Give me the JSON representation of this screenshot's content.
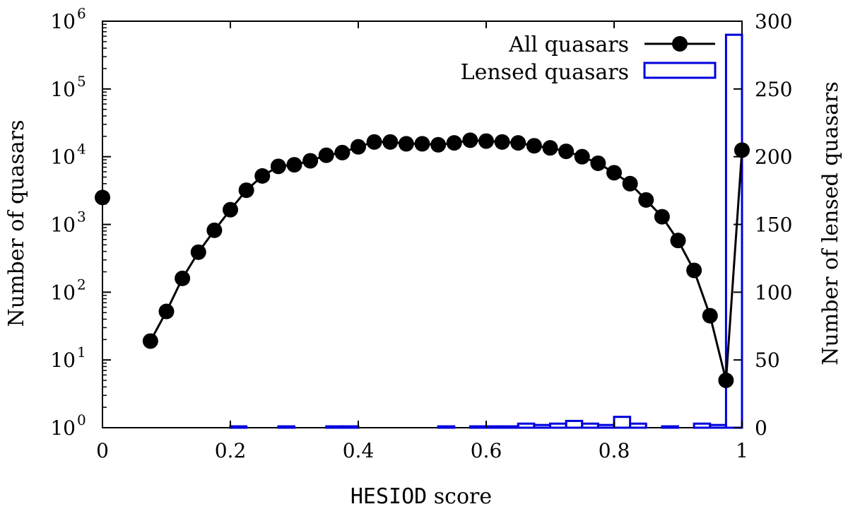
{
  "chart_data": {
    "type": "line",
    "xlabel_mono": "HESIOD",
    "xlabel_rest": " score",
    "ylabel": "Number of quasars",
    "y2label": "Number of lensed quasars",
    "xlim": [
      0,
      1
    ],
    "ylim": [
      1,
      1000000
    ],
    "y_scale": "log",
    "y2lim": [
      0,
      300
    ],
    "grid": false,
    "legend_position": "top-right",
    "x_ticks": [
      "0",
      "0.2",
      "0.4",
      "0.6",
      "0.8",
      "1"
    ],
    "x_tick_values": [
      0,
      0.2,
      0.4,
      0.6,
      0.8,
      1
    ],
    "y_tick_exponents": [
      "0",
      "1",
      "2",
      "3",
      "4",
      "5",
      "6"
    ],
    "y2_ticks": [
      "0",
      "50",
      "100",
      "150",
      "200",
      "250",
      "300"
    ],
    "y2_tick_values": [
      0,
      50,
      100,
      150,
      200,
      250,
      300
    ],
    "series": [
      {
        "name": "All quasars",
        "kind": "line-points",
        "color": "#000000",
        "x": [
          0.0,
          0.075,
          0.1,
          0.125,
          0.15,
          0.175,
          0.2,
          0.225,
          0.25,
          0.275,
          0.3,
          0.325,
          0.35,
          0.375,
          0.4,
          0.425,
          0.45,
          0.475,
          0.5,
          0.525,
          0.55,
          0.575,
          0.6,
          0.625,
          0.65,
          0.675,
          0.7,
          0.725,
          0.75,
          0.775,
          0.8,
          0.825,
          0.85,
          0.875,
          0.9,
          0.925,
          0.95,
          0.975,
          1.0
        ],
        "values": [
          2500,
          19,
          52,
          160,
          390,
          820,
          1650,
          3200,
          5200,
          7200,
          7600,
          8700,
          10500,
          11500,
          14000,
          16500,
          16500,
          15500,
          15500,
          15000,
          16000,
          17500,
          17000,
          16500,
          16000,
          14500,
          13500,
          12000,
          10000,
          8000,
          5800,
          4000,
          2300,
          1300,
          580,
          210,
          45,
          5,
          12500
        ]
      },
      {
        "name": "Lensed quasars",
        "kind": "histogram",
        "color": "#0000dd",
        "bin_width": 0.025,
        "bin_starts": [
          0.2,
          0.225,
          0.25,
          0.275,
          0.3,
          0.325,
          0.35,
          0.375,
          0.4,
          0.425,
          0.45,
          0.475,
          0.5,
          0.525,
          0.55,
          0.575,
          0.6,
          0.625,
          0.65,
          0.675,
          0.7,
          0.725,
          0.75,
          0.775,
          0.8,
          0.825,
          0.85,
          0.875,
          0.9,
          0.925,
          0.95,
          0.975
        ],
        "values": [
          1,
          0,
          0,
          1,
          0,
          0,
          1,
          1,
          0,
          0,
          0,
          0,
          0,
          1,
          0,
          1,
          1,
          1,
          3,
          2,
          3,
          5,
          3,
          2,
          8,
          3,
          0,
          1,
          0,
          3,
          2,
          290
        ]
      }
    ]
  }
}
